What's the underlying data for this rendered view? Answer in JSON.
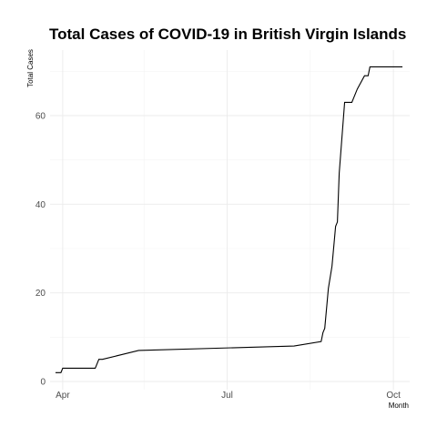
{
  "chart_data": {
    "type": "line",
    "title": "Total Cases of COVID-19 in British Virgin Islands",
    "xlabel": "Month",
    "ylabel": "Total Cases",
    "xlim": [
      "2020-03-25",
      "2020-10-10"
    ],
    "ylim": [
      0,
      72
    ],
    "x_ticks": [
      {
        "date": "2020-04-01",
        "label": "Apr"
      },
      {
        "date": "2020-07-01",
        "label": "Jul"
      },
      {
        "date": "2020-10-01",
        "label": "Oct"
      }
    ],
    "x_minor_ticks": [
      "2020-05-16",
      "2020-08-16"
    ],
    "y_ticks": [
      0,
      20,
      40,
      60
    ],
    "y_minor_ticks": [
      10,
      30,
      50,
      70
    ],
    "grid": true,
    "legend": "none",
    "series": [
      {
        "x": [
          "2020-03-28",
          "2020-03-31",
          "2020-04-01",
          "2020-04-19",
          "2020-04-21",
          "2020-04-23",
          "2020-05-03",
          "2020-05-13",
          "2020-08-07",
          "2020-08-22",
          "2020-08-23",
          "2020-08-24",
          "2020-08-26",
          "2020-08-28",
          "2020-08-30",
          "2020-08-31",
          "2020-09-01",
          "2020-09-04",
          "2020-09-08",
          "2020-09-11",
          "2020-09-15",
          "2020-09-17",
          "2020-09-18",
          "2020-10-06"
        ],
        "y": [
          2,
          2,
          3,
          3,
          5,
          5,
          6,
          7,
          8,
          9,
          11,
          12,
          21,
          26,
          35,
          36,
          47,
          63,
          63,
          66,
          69,
          69,
          71,
          71
        ]
      }
    ]
  }
}
